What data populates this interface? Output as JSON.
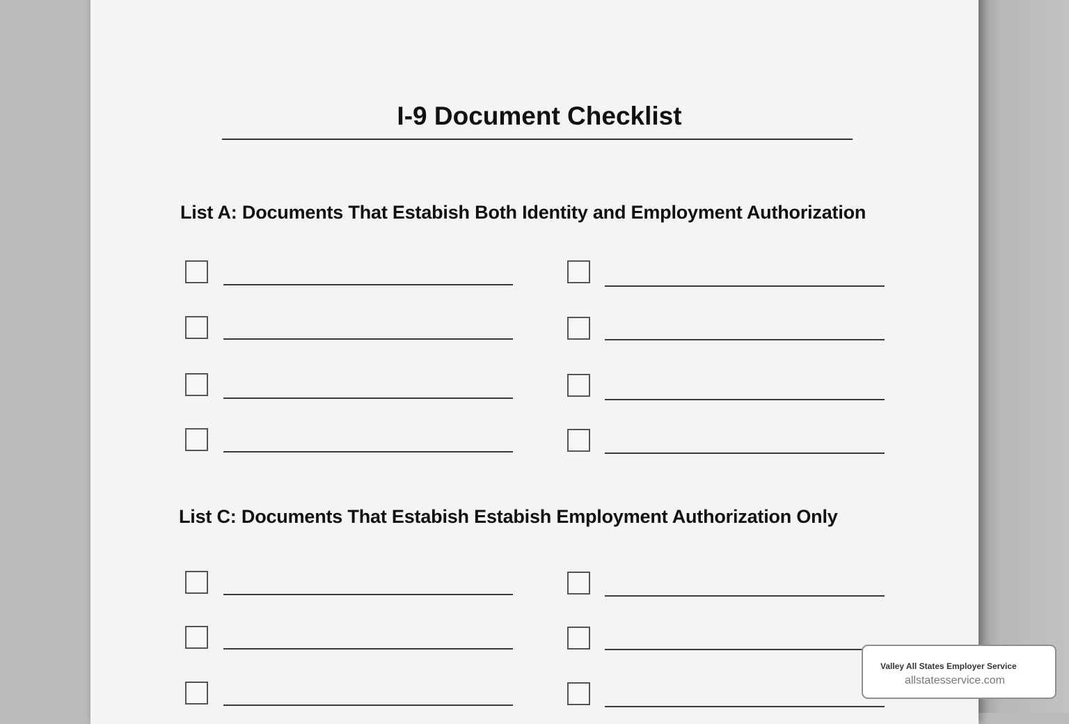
{
  "document": {
    "title": "I-9 Document Checklist",
    "list_a": {
      "heading": "List A: Documents That Estabish Both Identity and Employment Authorization",
      "checked": [
        false,
        false,
        false,
        false,
        false,
        false,
        false,
        false
      ]
    },
    "list_c": {
      "heading": "List C: Documents That Estabish Estabish Employment Authorization Only",
      "checked": [
        false,
        false,
        false,
        false,
        false,
        false
      ]
    }
  },
  "watermark": {
    "company": "Valley All States Employer Service",
    "url": "allstatesservice.com"
  }
}
